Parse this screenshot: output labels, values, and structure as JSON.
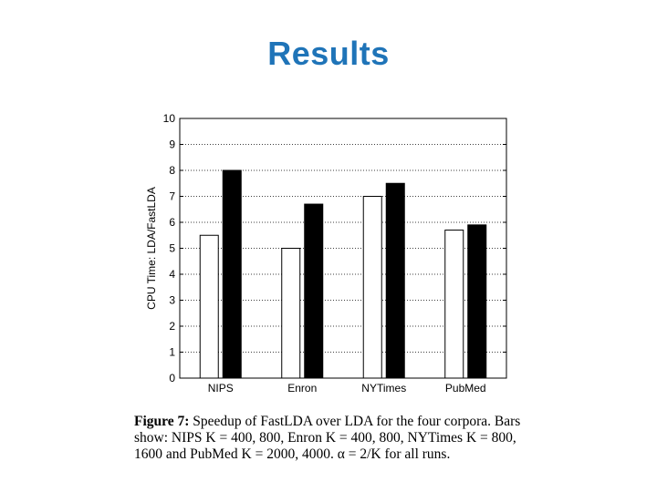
{
  "slide": {
    "title": "Results",
    "title_color": "#1f74b8"
  },
  "caption": {
    "label": "Figure 7:",
    "text": "Speedup of FastLDA over LDA for the four corpora. Bars show: NIPS K = 400, 800, Enron K = 400, 800, NYTimes K = 800, 1600 and PubMed K = 2000, 4000. α = 2/K for all runs."
  },
  "chart_data": {
    "type": "bar",
    "categories": [
      "NIPS",
      "Enron",
      "NYTimes",
      "PubMed"
    ],
    "series": [
      {
        "values": [
          5.5,
          5.0,
          7.0,
          5.7
        ],
        "color": "#ffffff"
      },
      {
        "values": [
          8.0,
          6.7,
          7.5,
          5.9
        ],
        "color": "#000000"
      }
    ],
    "title": "",
    "xlabel": "",
    "ylabel": "CPU Time: LDA/FastLDA",
    "ylim": [
      0,
      10
    ],
    "yticks": [
      0,
      1,
      2,
      3,
      4,
      5,
      6,
      7,
      8,
      9,
      10
    ],
    "grid": "horizontal-dotted"
  }
}
